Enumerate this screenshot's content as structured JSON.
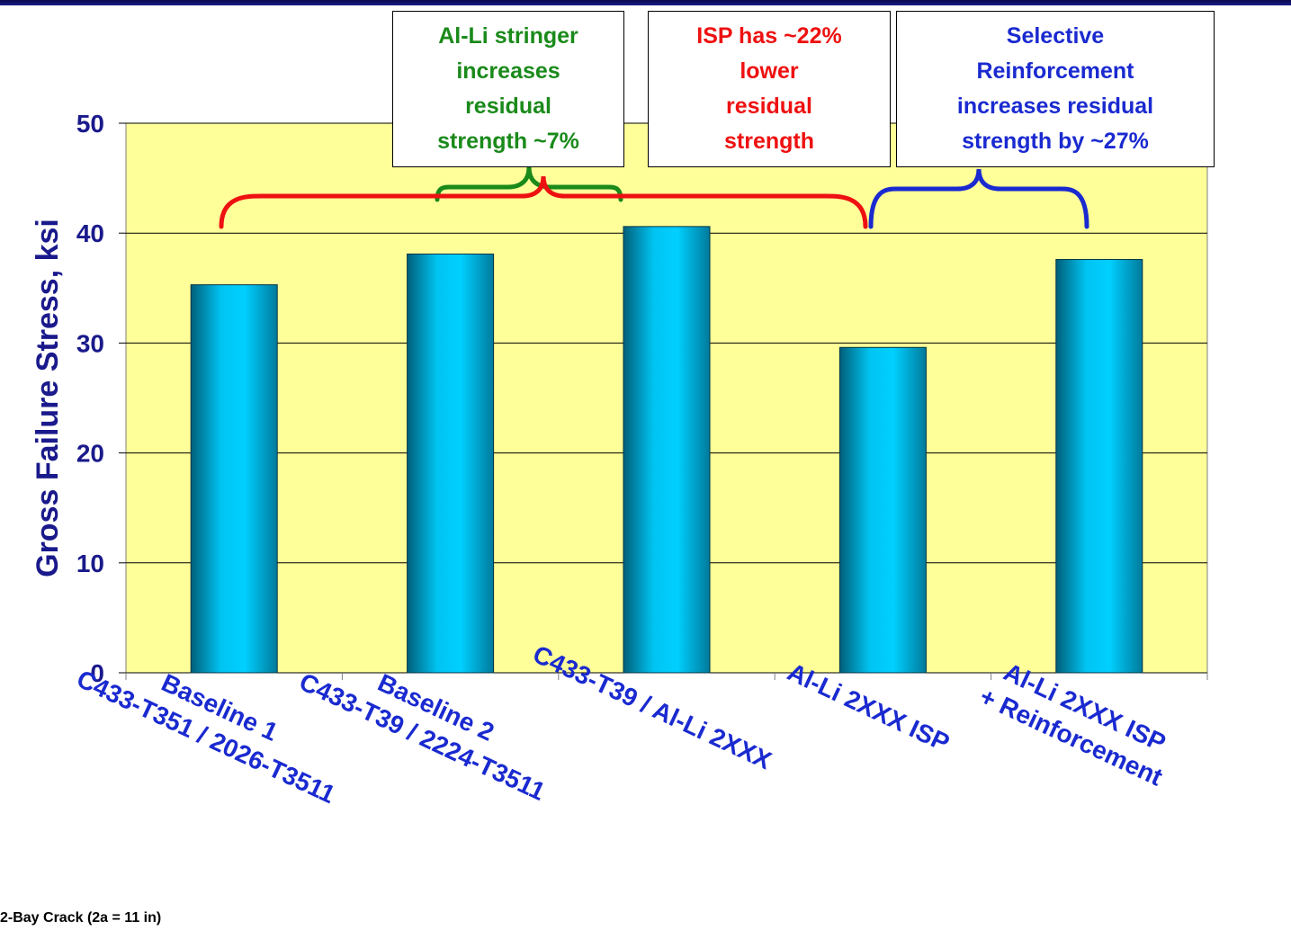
{
  "chart_data": {
    "type": "bar",
    "ylabel": "Gross Failure Stress, ksi",
    "xlabel": "",
    "ylim": [
      0,
      50
    ],
    "yticks": [
      0,
      10,
      20,
      30,
      40,
      50
    ],
    "grid": true,
    "categories": [
      [
        "Baseline 1",
        "C433-T351 / 2026-T3511"
      ],
      [
        "Baseline 2",
        "C433-T39 / 2224-T3511"
      ],
      [
        "C433-T39 / Al-Li 2XXX"
      ],
      [
        "Al-Li 2XXX ISP"
      ],
      [
        "Al-Li 2XXX ISP",
        "+ Reinforcement"
      ]
    ],
    "values": [
      35.3,
      38.1,
      40.6,
      29.6,
      37.6
    ],
    "colors": {
      "plot_bg": "#ffff99",
      "bar": "#00b8e8",
      "axis_text": "#1a1a8c",
      "green": "#1a8a1a",
      "red": "#ee1111",
      "blue": "#1a2ad0"
    },
    "annotations": [
      {
        "id": "green",
        "text": "Al-Li stringer\nincreases\nresidual\nstrength ~7%",
        "color": "#1a8a1a",
        "spans": [
          0,
          1
        ]
      },
      {
        "id": "red",
        "text": "ISP has ~22%\nlower\nresidual\nstrength",
        "color": "#ee1111",
        "spans": [
          0,
          3
        ]
      },
      {
        "id": "blue",
        "text": "Selective\nReinforcement\nincreases residual\nstrength by ~27%",
        "color": "#1a2ad0",
        "spans": [
          3,
          4
        ]
      }
    ]
  },
  "footnote": "2-Bay Crack (2a = 11 in)"
}
